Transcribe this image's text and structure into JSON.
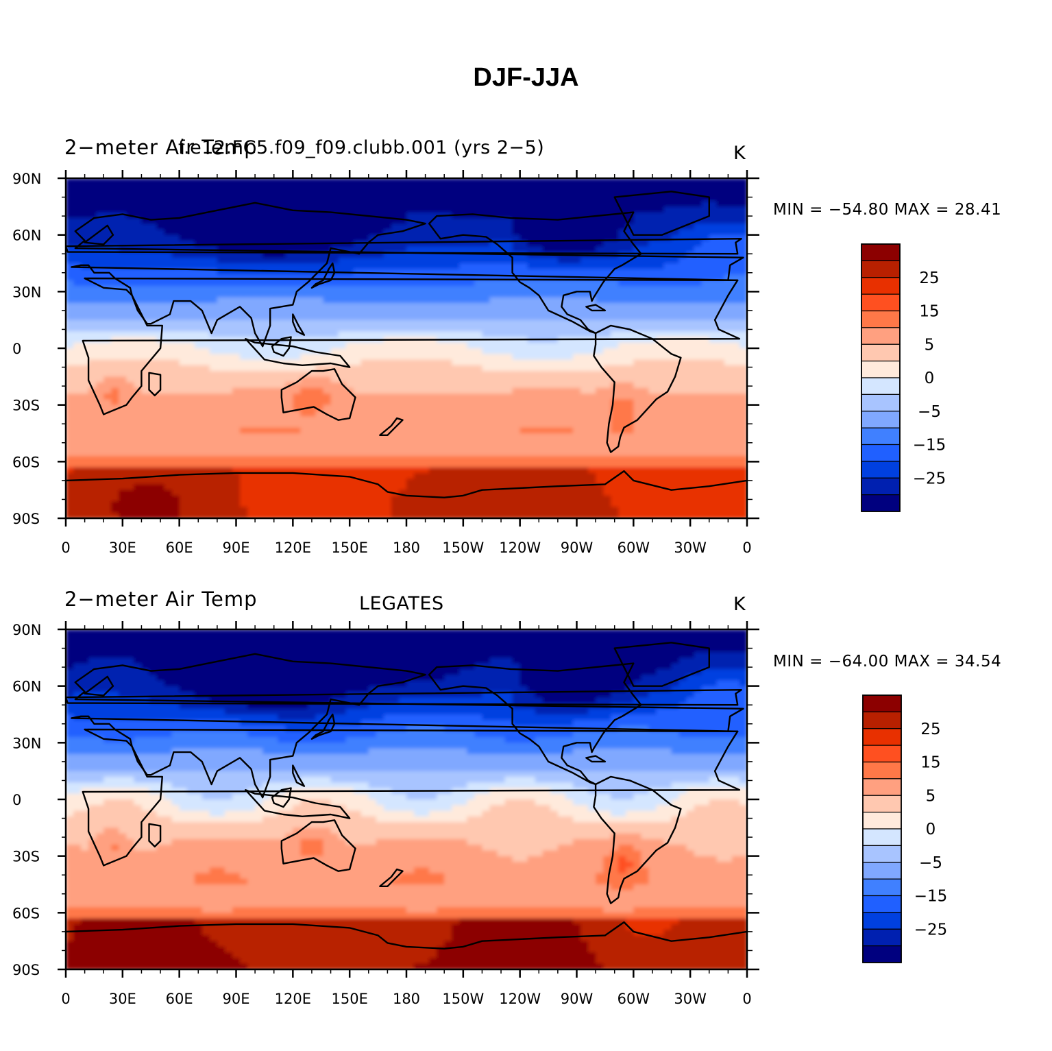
{
  "figure": {
    "title": "DJF-JJA"
  },
  "colors": {
    "scale": [
      "#00007f",
      "#0020b0",
      "#0040e0",
      "#2060ff",
      "#4080ff",
      "#80a8ff",
      "#a8c4ff",
      "#d4e6ff",
      "#ffeadc",
      "#ffc8b0",
      "#ffa080",
      "#ff7848",
      "#ff5020",
      "#e83000",
      "#b82000",
      "#8c0000"
    ],
    "coast": "#000000"
  },
  "panels": [
    {
      "id": "model",
      "left_title": "2−meter Air Temp",
      "center_title": "f.e12.FC5.f09_f09.clubb.001 (yrs 2−5)",
      "units": "K",
      "min_max": "MIN = −54.80  MAX =   28.41",
      "field_seed": 1
    },
    {
      "id": "obs",
      "left_title": "2−meter Air Temp",
      "center_title": "LEGATES",
      "units": "K",
      "min_max": "MIN = −64.00  MAX =   34.54",
      "field_seed": 2
    }
  ],
  "colorbar": {
    "tick_labels": [
      "25",
      "15",
      "5",
      "0",
      "−5",
      "−15",
      "−25"
    ]
  },
  "chart_data": [
    {
      "type": "heatmap",
      "title": "2−meter Air Temp  f.e12.FC5.f09_f09.clubb.001 (yrs 2−5)",
      "units": "K",
      "xlabel": "",
      "ylabel": "",
      "x_tick_labels": [
        "0",
        "30E",
        "60E",
        "90E",
        "120E",
        "150E",
        "180",
        "150W",
        "120W",
        "90W",
        "60W",
        "30W",
        "0"
      ],
      "y_tick_labels": [
        "90N",
        "60N",
        "30N",
        "0",
        "30S",
        "60S",
        "90S"
      ],
      "xlim": [
        0,
        360
      ],
      "ylim": [
        -90,
        90
      ],
      "contour_levels": [
        -35,
        -30,
        -25,
        -20,
        -15,
        -10,
        -5,
        -2,
        0,
        2,
        5,
        10,
        15,
        20,
        25,
        30,
        35
      ],
      "min": -54.8,
      "max": 28.41
    },
    {
      "type": "heatmap",
      "title": "2−meter Air Temp  LEGATES",
      "units": "K",
      "xlabel": "",
      "ylabel": "",
      "x_tick_labels": [
        "0",
        "30E",
        "60E",
        "90E",
        "120E",
        "150E",
        "180",
        "150W",
        "120W",
        "90W",
        "60W",
        "30W",
        "0"
      ],
      "y_tick_labels": [
        "90N",
        "60N",
        "30N",
        "0",
        "30S",
        "60S",
        "90S"
      ],
      "xlim": [
        0,
        360
      ],
      "ylim": [
        -90,
        90
      ],
      "contour_levels": [
        -35,
        -30,
        -25,
        -20,
        -15,
        -10,
        -5,
        -2,
        0,
        2,
        5,
        10,
        15,
        20,
        25,
        30,
        35
      ],
      "min": -64.0,
      "max": 34.54
    }
  ]
}
